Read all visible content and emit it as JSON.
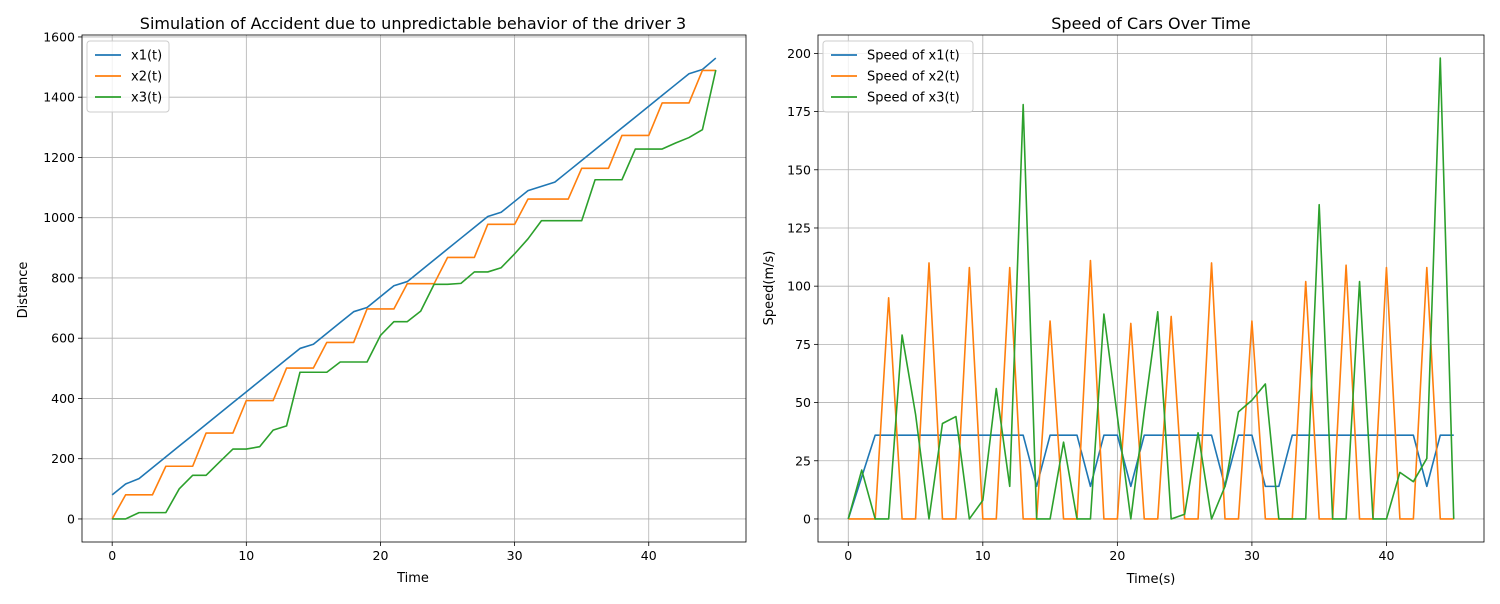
{
  "colors": {
    "blue": "#1f77b4",
    "orange": "#ff7f0e",
    "green": "#2ca02c"
  },
  "chart_data": [
    {
      "type": "line",
      "title": "Simulation of Accident due to unpredictable behavior of the driver 3",
      "xlabel": "Time",
      "ylabel": "Distance",
      "xlim": [
        -2.25,
        47.25
      ],
      "ylim": [
        -76.5,
        1606.5
      ],
      "xticks": [
        0,
        10,
        20,
        30,
        40
      ],
      "yticks": [
        0,
        200,
        400,
        600,
        800,
        1000,
        1200,
        1400,
        1600
      ],
      "grid": true,
      "legend": "upper left",
      "x": [
        0,
        1,
        2,
        3,
        4,
        5,
        6,
        7,
        8,
        9,
        10,
        11,
        12,
        13,
        14,
        15,
        16,
        17,
        18,
        19,
        20,
        21,
        22,
        23,
        24,
        25,
        26,
        27,
        28,
        29,
        30,
        31,
        32,
        33,
        34,
        35,
        36,
        37,
        38,
        39,
        40,
        41,
        42,
        43,
        44,
        45
      ],
      "series": [
        {
          "name": "x1(t)",
          "color": "blue",
          "values": [
            80,
            116,
            134,
            170,
            206,
            242,
            278,
            314,
            350,
            386,
            422,
            458,
            494,
            530,
            566,
            580,
            616,
            652,
            688,
            702,
            738,
            774,
            788,
            824,
            860,
            896,
            932,
            968,
            1004,
            1018,
            1054,
            1090,
            1104,
            1118,
            1154,
            1190,
            1226,
            1262,
            1298,
            1334,
            1370,
            1406,
            1442,
            1478,
            1492,
            1530
          ]
        },
        {
          "name": "x2(t)",
          "color": "orange",
          "values": [
            0,
            80,
            80,
            80,
            175,
            175,
            175,
            285,
            285,
            285,
            393,
            393,
            393,
            501,
            501,
            501,
            586,
            586,
            586,
            697,
            697,
            697,
            781,
            781,
            781,
            868,
            868,
            868,
            978,
            978,
            978,
            1062,
            1062,
            1062,
            1062,
            1164,
            1164,
            1164,
            1273,
            1273,
            1273,
            1381,
            1381,
            1381,
            1489,
            1489
          ]
        },
        {
          "name": "x3(t)",
          "color": "green",
          "values": [
            0,
            0,
            21,
            21,
            21,
            100,
            145,
            145,
            189,
            232,
            232,
            240,
            295,
            309,
            487,
            487,
            487,
            521,
            521,
            521,
            609,
            655,
            655,
            690,
            779,
            779,
            782,
            820,
            820,
            834,
            880,
            930,
            990,
            990,
            990,
            990,
            1126,
            1126,
            1126,
            1228,
            1228,
            1228,
            1248,
            1266,
            1292,
            1490
          ]
        }
      ]
    },
    {
      "type": "line",
      "title": "Speed of Cars Over Time",
      "xlabel": "Time(s)",
      "ylabel": "Speed(m/s)",
      "xlim": [
        -2.25,
        47.25
      ],
      "ylim": [
        -9.9,
        207.9
      ],
      "xticks": [
        0,
        10,
        20,
        30,
        40
      ],
      "yticks": [
        0,
        25,
        50,
        75,
        100,
        125,
        150,
        175,
        200
      ],
      "grid": true,
      "legend": "upper left",
      "x": [
        0,
        1,
        2,
        3,
        4,
        5,
        6,
        7,
        8,
        9,
        10,
        11,
        12,
        13,
        14,
        15,
        16,
        17,
        18,
        19,
        20,
        21,
        22,
        23,
        24,
        25,
        26,
        27,
        28,
        29,
        30,
        31,
        32,
        33,
        34,
        35,
        36,
        37,
        38,
        39,
        40,
        41,
        42,
        43,
        44,
        45
      ],
      "series": [
        {
          "name": "Speed of x1(t)",
          "color": "blue",
          "values": [
            0,
            18,
            36,
            36,
            36,
            36,
            36,
            36,
            36,
            36,
            36,
            36,
            36,
            36,
            14,
            36,
            36,
            36,
            14,
            36,
            36,
            14,
            36,
            36,
            36,
            36,
            36,
            36,
            14,
            36,
            36,
            14,
            14,
            36,
            36,
            36,
            36,
            36,
            36,
            36,
            36,
            36,
            36,
            14,
            36,
            36
          ]
        },
        {
          "name": "Speed of x2(t)",
          "color": "orange",
          "values": [
            0,
            0,
            0,
            95,
            0,
            0,
            110,
            0,
            0,
            108,
            0,
            0,
            108,
            0,
            0,
            85,
            0,
            0,
            111,
            0,
            0,
            84,
            0,
            0,
            87,
            0,
            0,
            110,
            0,
            0,
            85,
            0,
            0,
            0,
            102,
            0,
            0,
            109,
            0,
            0,
            108,
            0,
            0,
            108,
            0,
            0
          ]
        },
        {
          "name": "Speed of x3(t)",
          "color": "green",
          "values": [
            0,
            21,
            0,
            0,
            79,
            45,
            0,
            41,
            44,
            0,
            8,
            56,
            14,
            178,
            0,
            0,
            33,
            0,
            0,
            88,
            44,
            0,
            46,
            89,
            0,
            2,
            37,
            0,
            14,
            46,
            51,
            58,
            0,
            0,
            0,
            135,
            0,
            0,
            102,
            0,
            0,
            20,
            16,
            26,
            198,
            0
          ]
        }
      ]
    }
  ]
}
